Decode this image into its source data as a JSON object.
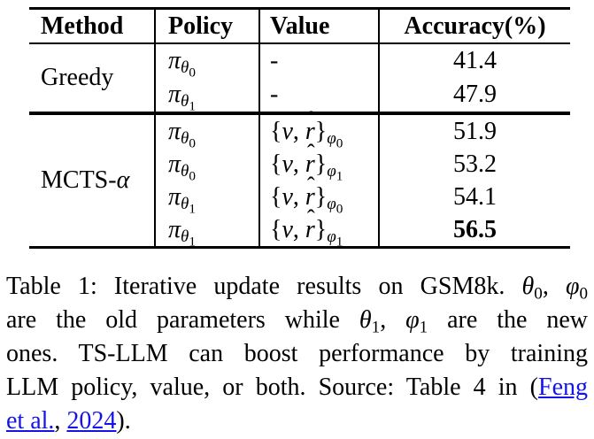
{
  "colors": {
    "background": "#ffffff",
    "text": "#000000",
    "rule": "#000000",
    "link_blue": "#1414e8"
  },
  "symbols": {
    "pi": "π",
    "theta": "θ",
    "phi": "φ",
    "alpha": "α",
    "v": "v",
    "r": "r",
    "hat": "ˆ",
    "brace_open": "{",
    "brace_close": "}",
    "comma_space": ", ",
    "dash": "-"
  },
  "table": {
    "headers": [
      "Method",
      "Policy",
      "Value",
      "Accuracy(%)"
    ],
    "groups": [
      {
        "method": "Greedy",
        "rows": [
          {
            "policy_idx": "0",
            "accuracy": "41.4"
          },
          {
            "policy_idx": "1",
            "accuracy": "47.9"
          }
        ]
      },
      {
        "method_prefix": "MCTS-",
        "rows": [
          {
            "policy_idx": "0",
            "value_idx": "0",
            "accuracy": "51.9"
          },
          {
            "policy_idx": "0",
            "value_idx": "1",
            "accuracy": "53.2"
          },
          {
            "policy_idx": "1",
            "value_idx": "0",
            "accuracy": "54.1"
          },
          {
            "policy_idx": "1",
            "value_idx": "1",
            "accuracy": "56.5",
            "best": true
          }
        ]
      }
    ]
  },
  "caption": {
    "sub0": "0",
    "sub1": "1",
    "comma_space": ", ",
    "l1_text": "Table 1: Iterative update results on GSM8k. ",
    "l2_pre": "are the old parameters while ",
    "l2_post": " are the new",
    "l3": "ones. TS-LLM can boost performance by training",
    "l4_text": "LLM policy, value, or both. Source: Table 4 in (",
    "l4_link": "Feng",
    "l5_link1": "et al.",
    "l5_mid": ", ",
    "l5_link2": "2024",
    "l5_end": ")."
  }
}
